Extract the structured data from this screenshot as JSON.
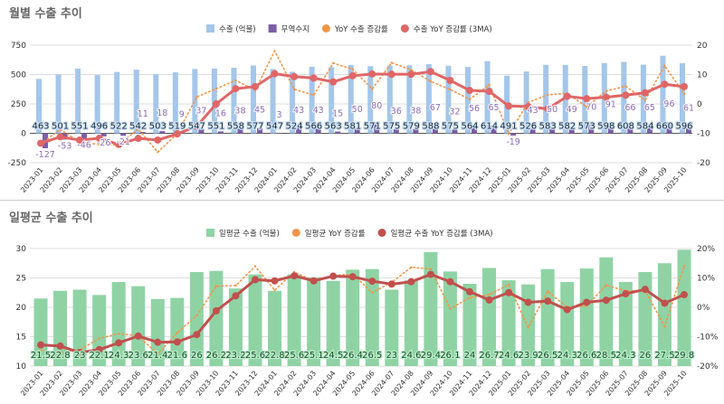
{
  "chart_data": [
    {
      "type": "bar",
      "title": "월별 수출 추이",
      "categories": [
        "2023-01",
        "2023-02",
        "2023-03",
        "2023-04",
        "2023-05",
        "2023-06",
        "2023-07",
        "2023-08",
        "2023-09",
        "2023-10",
        "2023-11",
        "2023-12",
        "2024-01",
        "2024-02",
        "2024-03",
        "2024-04",
        "2024-05",
        "2024-06",
        "2024-07",
        "2024-08",
        "2024-09",
        "2024-10",
        "2024-11",
        "2024-12",
        "2025-01",
        "2025-02",
        "2025-03",
        "2025-04",
        "2025-05",
        "2025-06",
        "2025-07",
        "2025-08",
        "2025-09",
        "2025-10"
      ],
      "ylim": [
        -250,
        750
      ],
      "yticks": [
        "-250",
        "0",
        "250",
        "500",
        "750"
      ],
      "y2lim": [
        -20,
        20
      ],
      "y2ticks": [
        "-20",
        "-10",
        "0",
        "10",
        "20"
      ],
      "legend_position": "top",
      "series": [
        {
          "name": "수출 (억불)",
          "kind": "bar",
          "axis": "left",
          "color": "#a4c6ea",
          "values": [
            463,
            501,
            551,
            496,
            522,
            542,
            503,
            519,
            547,
            551,
            558,
            577,
            547,
            524,
            566,
            563,
            581,
            571,
            575,
            579,
            588,
            575,
            564,
            614,
            491,
            526,
            583,
            582,
            573,
            598,
            608,
            584,
            660,
            596
          ]
        },
        {
          "name": "무역수지",
          "kind": "bar",
          "axis": "left",
          "color": "#7b5ea7",
          "values": [
            -127,
            -53,
            -46,
            -26,
            -21,
            11,
            18,
            9,
            37,
            16,
            38,
            45,
            3,
            43,
            43,
            15,
            50,
            80,
            36,
            38,
            67,
            32,
            56,
            65,
            -19,
            43,
            50,
            49,
            70,
            91,
            66,
            65,
            96,
            61
          ]
        },
        {
          "name": "YoY 수출 증감률",
          "kind": "dotted-line",
          "axis": "right",
          "color": "#f0964a",
          "values": [
            -13.6,
            -8.7,
            -13,
            -13.8,
            -14,
            -8.5,
            -16.4,
            -10.2,
            2.4,
            5.2,
            8,
            4.7,
            18,
            5,
            3,
            13.9,
            11.8,
            5.1,
            14,
            11.6,
            7.7,
            4.9,
            1.6,
            6.5,
            -10.2,
            0.5,
            3.1,
            3.6,
            -1,
            4.4,
            6,
            1.3,
            13,
            3.4
          ]
        },
        {
          "name": "수출 YoY 증감률 (3MA)",
          "kind": "line",
          "axis": "right",
          "color": "#e06666",
          "values": [
            -13.4,
            -11.2,
            -12.3,
            -11.7,
            -13.8,
            -11.7,
            -12.3,
            -10.2,
            -7.6,
            0,
            5.2,
            5.9,
            10.3,
            9.3,
            8.8,
            7.5,
            9.6,
            10.2,
            10.1,
            10.1,
            11,
            8,
            4.6,
            4.3,
            -0.7,
            -0.9,
            -1.7,
            2.6,
            1.8,
            2.3,
            3,
            3.8,
            6.7,
            5.9
          ]
        }
      ]
    },
    {
      "type": "bar",
      "title": "일평균 수출 추이",
      "categories": [
        "2023-01",
        "2023-02",
        "2023-03",
        "2023-04",
        "2023-05",
        "2023-06",
        "2023-07",
        "2023-08",
        "2023-09",
        "2023-10",
        "2023-11",
        "2023-12",
        "2024-01",
        "2024-02",
        "2024-03",
        "2024-04",
        "2024-05",
        "2024-06",
        "2024-07",
        "2024-08",
        "2024-09",
        "2024-10",
        "2024-11",
        "2024-12",
        "2025-01",
        "2025-02",
        "2025-03",
        "2025-04",
        "2025-05",
        "2025-06",
        "2025-07",
        "2025-08",
        "2025-09",
        "2025-10"
      ],
      "ylim": [
        10,
        30
      ],
      "yticks": [
        "10",
        "15",
        "20",
        "25",
        "30"
      ],
      "y2lim": [
        -20,
        20
      ],
      "y2ticks": [
        "-20%",
        "-10%",
        "0%",
        "10%",
        "20%"
      ],
      "legend_position": "top",
      "series": [
        {
          "name": "일평균 수출 (억불)",
          "kind": "bar",
          "axis": "left",
          "color": "#8fd3a4",
          "values": [
            21.5,
            22.8,
            23,
            22.1,
            24.3,
            23.6,
            21.4,
            21.6,
            26,
            26.2,
            23.2,
            25.6,
            22.8,
            25.6,
            25.1,
            24.5,
            26.4,
            26.5,
            23,
            24.6,
            29.4,
            26.1,
            24,
            26.7,
            24.6,
            23.9,
            26.5,
            24.3,
            26.6,
            28.5,
            24.3,
            26,
            27.5,
            29.8
          ]
        },
        {
          "name": "일평균 YoY 증감률",
          "kind": "dotted-line",
          "axis": "right",
          "color": "#f0964a",
          "values": [
            -14.6,
            -15.4,
            -14.5,
            -10.6,
            -9,
            -9.7,
            -15.9,
            -8.7,
            -2.8,
            7.2,
            7.4,
            14,
            5.8,
            12,
            8.9,
            10.8,
            11.3,
            5,
            8.5,
            13.6,
            13,
            -0.5,
            3.3,
            4.3,
            7.7,
            -6.9,
            5.4,
            0,
            0.5,
            7.5,
            5.6,
            5.6,
            -6.5,
            14
          ]
        },
        {
          "name": "일평균 수출 YoY 증감률 (3MA)",
          "kind": "line",
          "axis": "right",
          "color": "#c0504d",
          "values": [
            -12.8,
            -13.2,
            -15.4,
            -14.4,
            -12.1,
            -9.8,
            -11.9,
            -11.8,
            -9.3,
            -1.2,
            3.9,
            9.4,
            9,
            10.7,
            9,
            10.6,
            10.4,
            8.9,
            7.9,
            8.7,
            11.2,
            8.7,
            5.3,
            2.5,
            5,
            1.7,
            2.1,
            -0.8,
            1.7,
            2.4,
            4.6,
            6.1,
            1.4,
            4.3
          ]
        }
      ]
    }
  ]
}
